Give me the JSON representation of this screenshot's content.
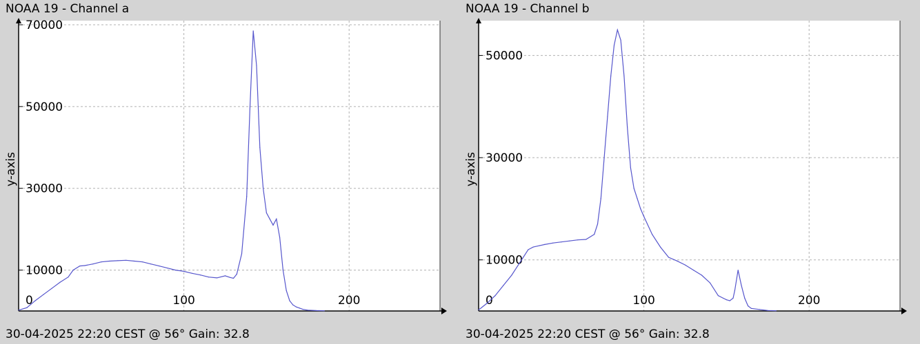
{
  "chart_data": [
    {
      "type": "line",
      "title": "NOAA 19 - Channel a",
      "footer": "30-04-2025 22:20 CEST @ 56° Gain: 32.8",
      "xlabel": "",
      "ylabel": "y-axis",
      "x_ticks": [
        0,
        100,
        200
      ],
      "y_ticks": [
        10000,
        30000,
        50000,
        70000
      ],
      "xlim": [
        0,
        255
      ],
      "ylim": [
        0,
        70000
      ],
      "grid": true,
      "line_color": "#5555cc",
      "series": [
        {
          "x": [
            0,
            5,
            10,
            15,
            20,
            25,
            30,
            33,
            37,
            40,
            45,
            50,
            55,
            60,
            65,
            70,
            75,
            80,
            85,
            90,
            95,
            100,
            105,
            110,
            115,
            120,
            125,
            128,
            130,
            132,
            135,
            138,
            140,
            142,
            144,
            146,
            148,
            150,
            152,
            154,
            156,
            158,
            160,
            162,
            164,
            166,
            168,
            170,
            172,
            175,
            180,
            185
          ],
          "y": [
            200,
            800,
            2500,
            4000,
            5500,
            7000,
            8300,
            10000,
            11000,
            11100,
            11500,
            12000,
            12200,
            12300,
            12400,
            12200,
            12000,
            11500,
            11000,
            10500,
            10000,
            9700,
            9200,
            8800,
            8300,
            8100,
            8600,
            8200,
            8000,
            9000,
            14000,
            28000,
            50000,
            68500,
            60000,
            40000,
            30000,
            24000,
            22500,
            21000,
            22500,
            18000,
            10000,
            5000,
            2500,
            1500,
            1000,
            700,
            400,
            200,
            100,
            50
          ]
        }
      ]
    },
    {
      "type": "line",
      "title": "NOAA 19 - Channel b",
      "footer": "30-04-2025 22:20 CEST @ 56° Gain: 32.8",
      "xlabel": "",
      "ylabel": "y-axis",
      "x_ticks": [
        0,
        100,
        200
      ],
      "y_ticks": [
        10000,
        30000,
        50000
      ],
      "xlim": [
        0,
        255
      ],
      "ylim": [
        0,
        56000
      ],
      "grid": true,
      "line_color": "#5555cc",
      "series": [
        {
          "x": [
            0,
            5,
            10,
            15,
            20,
            25,
            30,
            33,
            37,
            40,
            45,
            50,
            55,
            60,
            65,
            70,
            72,
            74,
            76,
            78,
            80,
            82,
            84,
            86,
            88,
            90,
            92,
            94,
            96,
            98,
            100,
            105,
            110,
            115,
            120,
            125,
            130,
            135,
            140,
            145,
            148,
            150,
            152,
            154,
            155,
            157,
            159,
            161,
            163,
            165,
            170,
            175,
            180
          ],
          "y": [
            200,
            1500,
            3000,
            5000,
            7000,
            9500,
            12000,
            12500,
            12800,
            13000,
            13300,
            13500,
            13700,
            13900,
            14000,
            15000,
            17000,
            22000,
            30000,
            38000,
            46000,
            52000,
            55000,
            53000,
            46000,
            36000,
            28000,
            24000,
            22000,
            20000,
            18500,
            15000,
            12500,
            10500,
            9800,
            9000,
            8000,
            7000,
            5500,
            3000,
            2500,
            2200,
            2000,
            2500,
            4000,
            8000,
            5000,
            2500,
            1000,
            500,
            300,
            100,
            50
          ]
        }
      ]
    }
  ]
}
